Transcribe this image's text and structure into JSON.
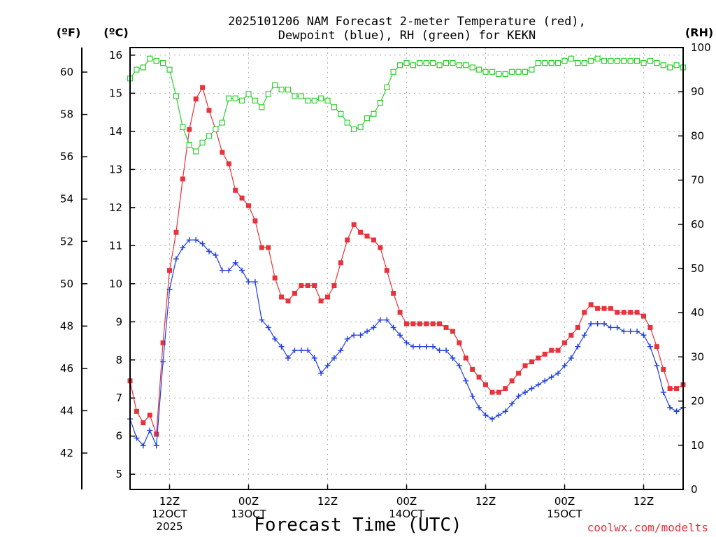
{
  "title_lines": [
    "2025101206 NAM Forecast 2-meter Temperature (red),",
    "Dewpoint (blue), RH (green) for KEKN"
  ],
  "watermark": "coolwx.com/modelts",
  "colors": {
    "temperature": "#e8323c",
    "dewpoint": "#1f3fe0",
    "rh": "#2fd02f",
    "grid": "#b4b4b4"
  },
  "chart_data": {
    "type": "line",
    "title": "2025101206 NAM Forecast 2-meter Temperature (red), Dewpoint (blue), RH (green) for KEKN",
    "xlabel": "Forecast Time (UTC)",
    "x_unit": "forecast hour from 2025-10-12 06Z",
    "x": [
      0,
      1,
      2,
      3,
      4,
      5,
      6,
      7,
      8,
      9,
      10,
      11,
      12,
      13,
      14,
      15,
      16,
      17,
      18,
      19,
      20,
      21,
      22,
      23,
      24,
      25,
      26,
      27,
      28,
      29,
      30,
      31,
      32,
      33,
      34,
      35,
      36,
      37,
      38,
      39,
      40,
      41,
      42,
      43,
      44,
      45,
      46,
      47,
      48,
      49,
      50,
      51,
      52,
      53,
      54,
      55,
      56,
      57,
      58,
      59,
      60,
      61,
      62,
      63,
      64,
      65,
      66,
      67,
      68,
      69,
      70,
      71,
      72,
      73,
      74,
      75,
      76,
      77,
      78,
      79,
      80,
      81,
      82,
      83,
      84
    ],
    "xlim": [
      0,
      84
    ],
    "x_ticks": [
      {
        "hour": 6,
        "lines": [
          "12Z",
          "12OCT",
          "2025"
        ]
      },
      {
        "hour": 18,
        "lines": [
          "00Z",
          "13OCT"
        ]
      },
      {
        "hour": 30,
        "lines": [
          "12Z"
        ]
      },
      {
        "hour": 42,
        "lines": [
          "00Z",
          "14OCT"
        ]
      },
      {
        "hour": 54,
        "lines": [
          "12Z"
        ]
      },
      {
        "hour": 66,
        "lines": [
          "00Z",
          "15OCT"
        ]
      },
      {
        "hour": 78,
        "lines": [
          "12Z"
        ]
      }
    ],
    "axes": {
      "celsius": {
        "label": "(ºC)",
        "lim": [
          4.6,
          16.2
        ],
        "ticks": [
          5,
          6,
          7,
          8,
          9,
          10,
          11,
          12,
          13,
          14,
          15,
          16
        ]
      },
      "fahrenheit": {
        "label": "(ºF)",
        "lim": [
          40.28,
          61.16
        ],
        "ticks": [
          42,
          44,
          46,
          48,
          50,
          52,
          54,
          56,
          58,
          60
        ]
      },
      "rh": {
        "label": "(RH)",
        "lim": [
          0,
          100
        ],
        "ticks": [
          0,
          10,
          20,
          30,
          40,
          50,
          60,
          70,
          80,
          90,
          100
        ]
      }
    },
    "grid": true,
    "series": [
      {
        "name": "Temperature (red)",
        "unit": "ºC",
        "marker": "filled-square",
        "color": "#e8323c",
        "values": [
          7.45,
          6.65,
          6.35,
          6.55,
          6.05,
          8.45,
          10.35,
          11.35,
          12.75,
          14.05,
          14.85,
          15.15,
          14.55,
          14.05,
          13.45,
          13.15,
          12.45,
          12.25,
          12.05,
          11.65,
          10.95,
          10.95,
          10.15,
          9.65,
          9.55,
          9.75,
          9.95,
          9.95,
          9.95,
          9.55,
          9.65,
          9.95,
          10.55,
          11.15,
          11.55,
          11.35,
          11.25,
          11.15,
          10.95,
          10.35,
          9.75,
          9.25,
          8.95,
          8.95,
          8.95,
          8.95,
          8.95,
          8.95,
          8.85,
          8.75,
          8.45,
          8.05,
          7.75,
          7.55,
          7.35,
          7.15,
          7.15,
          7.25,
          7.45,
          7.65,
          7.85,
          7.95,
          8.05,
          8.15,
          8.25,
          8.25,
          8.45,
          8.65,
          8.85,
          9.25,
          9.45,
          9.35,
          9.35,
          9.35,
          9.25,
          9.25,
          9.25,
          9.25,
          9.15,
          8.85,
          8.35,
          7.75,
          7.25,
          7.25,
          7.35
        ]
      },
      {
        "name": "Dewpoint (blue)",
        "unit": "ºC",
        "marker": "plus",
        "color": "#1f3fe0",
        "values": [
          6.45,
          5.95,
          5.75,
          6.15,
          5.75,
          7.95,
          9.85,
          10.65,
          10.95,
          11.15,
          11.15,
          11.05,
          10.85,
          10.75,
          10.35,
          10.35,
          10.55,
          10.35,
          10.05,
          10.05,
          9.05,
          8.85,
          8.55,
          8.35,
          8.05,
          8.25,
          8.25,
          8.25,
          8.05,
          7.65,
          7.85,
          8.05,
          8.25,
          8.55,
          8.65,
          8.65,
          8.75,
          8.85,
          9.05,
          9.05,
          8.85,
          8.65,
          8.45,
          8.35,
          8.35,
          8.35,
          8.35,
          8.25,
          8.25,
          8.05,
          7.85,
          7.45,
          7.05,
          6.75,
          6.55,
          6.45,
          6.55,
          6.65,
          6.85,
          7.05,
          7.15,
          7.25,
          7.35,
          7.45,
          7.55,
          7.65,
          7.85,
          8.05,
          8.35,
          8.65,
          8.95,
          8.95,
          8.95,
          8.85,
          8.85,
          8.75,
          8.75,
          8.75,
          8.65,
          8.35,
          7.85,
          7.15,
          6.75,
          6.65,
          6.75
        ]
      },
      {
        "name": "RH (green)",
        "unit": "%",
        "marker": "open-square",
        "color": "#2fd02f",
        "values": [
          93,
          95,
          95.5,
          97.5,
          97,
          96.5,
          95,
          89,
          82,
          78,
          76.5,
          78.5,
          80,
          81.5,
          83,
          88.5,
          88.5,
          88,
          89.5,
          88,
          86.5,
          89.5,
          91.5,
          90.5,
          90.5,
          89,
          89,
          88,
          88,
          88.5,
          88,
          86.5,
          85,
          83,
          81.5,
          82,
          84,
          85,
          87.5,
          91,
          94.5,
          96,
          96.5,
          96,
          96.5,
          96.5,
          96.5,
          96,
          96.5,
          96.5,
          96,
          96,
          95.5,
          95,
          94.5,
          94.5,
          94,
          94,
          94.5,
          94.5,
          94.5,
          95,
          96.5,
          96.5,
          96.5,
          96.5,
          97,
          97.5,
          96.5,
          96.5,
          97,
          97.5,
          97,
          97,
          97,
          97,
          97,
          97,
          96.5,
          97,
          96.5,
          96,
          95.5,
          96,
          95.5
        ]
      }
    ]
  }
}
